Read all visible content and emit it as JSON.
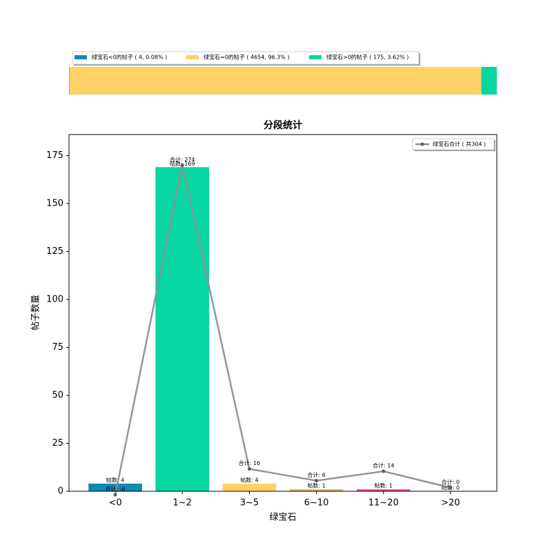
{
  "chart_data": [
    {
      "type": "stacked-hbar",
      "series": [
        {
          "name": "绿宝石<0的帖子 ( 4, 0.08% )",
          "color": "#118ab2",
          "values": [
            4
          ]
        },
        {
          "name": "绿宝石=0的帖子 ( 4654, 96.3% )",
          "color": "#ffd166",
          "values": [
            4654
          ]
        },
        {
          "name": "绿宝石>0的帖子 ( 175, 3.62% )",
          "color": "#06d6a0",
          "values": [
            175
          ]
        }
      ],
      "xlim": [
        0,
        4833
      ]
    },
    {
      "type": "bar-line",
      "title": "分段统计",
      "xlabel": "绿宝石",
      "ylabel": "帖子数量",
      "categories": [
        "<0",
        "1~2",
        "3~5",
        "6~10",
        "11~20",
        ">20"
      ],
      "series": [
        {
          "type": "bar",
          "colors": [
            "#118ab2",
            "#06d6a0",
            "#ffd166",
            "#d4b26a",
            "#ef476f",
            "#073b4c"
          ],
          "values": [
            4,
            169,
            4,
            1,
            1,
            0
          ],
          "value_labels": [
            "帖数: 4",
            "帖数: 169",
            "帖数: 4",
            "帖数: 1",
            "帖数: 1",
            "帖数: 0"
          ]
        },
        {
          "type": "line",
          "name": "绿宝石合计 ( 共304 )",
          "color": "#8e8e99",
          "axis": "y2",
          "values": [
            -6,
            274,
            16,
            6,
            14,
            0
          ],
          "value_labels": [
            "合计: -6",
            "合计: 274",
            "合计: 16",
            "合计: 6",
            "合计: 14",
            "合计: 0"
          ]
        }
      ],
      "ylim": [
        0,
        186
      ],
      "yticks": [
        0,
        25,
        50,
        75,
        100,
        125,
        150,
        175
      ],
      "y2lim": [
        -3,
        300
      ],
      "legend": "upper right"
    }
  ]
}
